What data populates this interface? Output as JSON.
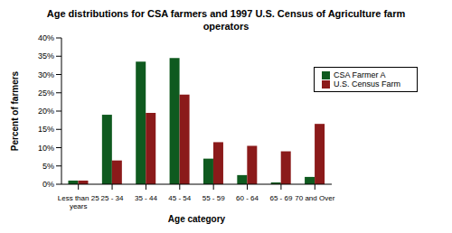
{
  "chart_data": {
    "type": "bar",
    "title": "Age distributions for CSA farmers and 1997 U.S. Census of Agriculture farm operators",
    "x_label": "Age category",
    "y_label": "Percent of farmers",
    "categories": [
      "Less than 25 years",
      "25 - 34",
      "35 - 44",
      "45 - 54",
      "55 - 59",
      "60 - 64",
      "65 - 69",
      "70 and Over"
    ],
    "series": [
      {
        "name": "CSA Farmer A",
        "color": "#0f5a1f",
        "values": [
          1,
          19,
          33.5,
          34.5,
          7,
          2.5,
          0.5,
          2
        ]
      },
      {
        "name": "U.S. Census Farm",
        "color": "#8b1a1a",
        "values": [
          1,
          6.5,
          19.5,
          24.5,
          11.5,
          10.5,
          9,
          16.5
        ]
      }
    ],
    "ylim": [
      0,
      40
    ],
    "yticks": [
      {
        "value": 0,
        "label": "0%"
      },
      {
        "value": 5,
        "label": "5%"
      },
      {
        "value": 10,
        "label": "10%"
      },
      {
        "value": 15,
        "label": "15%"
      },
      {
        "value": 20,
        "label": "20%"
      },
      {
        "value": 25,
        "label": "25%"
      },
      {
        "value": 30,
        "label": "30%"
      },
      {
        "value": 35,
        "label": "35%"
      },
      {
        "value": 40,
        "label": "40%"
      }
    ],
    "grid": false,
    "legend": "upper right"
  }
}
